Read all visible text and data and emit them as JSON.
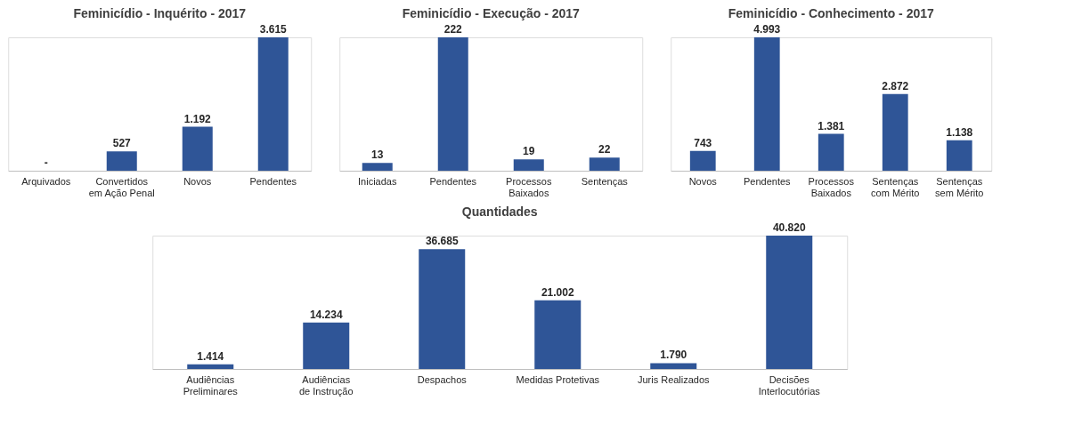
{
  "chart_data": [
    {
      "type": "bar",
      "title": "Feminicídio - Inquérito - 2017",
      "categories": [
        "Arquivados",
        "Convertidos em Ação Penal",
        "Novos",
        "Pendentes"
      ],
      "values": [
        0,
        527,
        1192,
        3615
      ],
      "value_labels": [
        "-",
        "527",
        "1.192",
        "3.615"
      ],
      "color": "#2f5597"
    },
    {
      "type": "bar",
      "title": "Feminicídio - Execução - 2017",
      "categories": [
        "Iniciadas",
        "Pendentes",
        "Processos Baixados",
        "Sentenças"
      ],
      "values": [
        13,
        222,
        19,
        22
      ],
      "value_labels": [
        "13",
        "222",
        "19",
        "22"
      ],
      "color": "#2f5597"
    },
    {
      "type": "bar",
      "title": "Feminicídio - Conhecimento - 2017",
      "categories": [
        "Novos",
        "Pendentes",
        "Processos Baixados",
        "Sentenças com Mérito",
        "Sentenças sem Mérito"
      ],
      "values": [
        743,
        4993,
        1381,
        2872,
        1138
      ],
      "value_labels": [
        "743",
        "4.993",
        "1.381",
        "2.872",
        "1.138"
      ],
      "color": "#2f5597"
    },
    {
      "type": "bar",
      "title": "Quantidades",
      "categories": [
        "Audiências Preliminares",
        "Audiências de Instrução",
        "Despachos",
        "Medidas Protetivas",
        "Juris Realizados",
        "Decisões Interlocutórias"
      ],
      "values": [
        1414,
        14234,
        36685,
        21002,
        1790,
        40820
      ],
      "value_labels": [
        "1.414",
        "14.234",
        "36.685",
        "21.002",
        "1.790",
        "40.820"
      ],
      "color": "#2f5597"
    }
  ]
}
